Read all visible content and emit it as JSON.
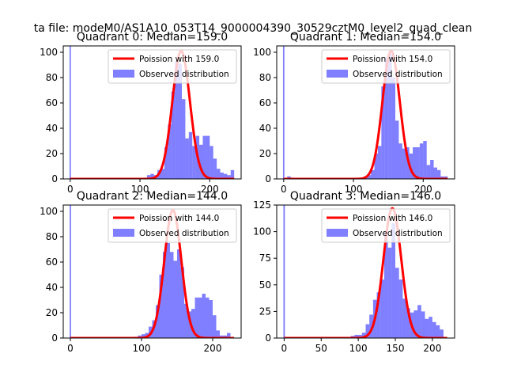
{
  "figure": {
    "suptitle": "ta file: modeM0/AS1A10_053T14_9000004390_30529cztM0_level2_quad_clean"
  },
  "colors": {
    "hist": "#0000ff",
    "poisson": "#ff0000",
    "axis": "#000000"
  },
  "chart_data": [
    {
      "type": "bar",
      "title": "Quadrant 0: Median=159.0",
      "xlim": [
        -10,
        245
      ],
      "ylim": [
        0,
        105
      ],
      "xticks": [
        0,
        100,
        200
      ],
      "yticks": [
        0,
        20,
        40,
        60,
        80,
        100
      ],
      "legend": [
        "Poission with 159.0",
        "Observed distribution"
      ],
      "legend_loc": "upper right",
      "poisson_mean": 159.0,
      "poisson_peak": 101,
      "bin_width": 5,
      "spike": {
        "x": 0,
        "value": 105
      },
      "hist_x": [
        100,
        105,
        110,
        115,
        120,
        125,
        130,
        135,
        140,
        145,
        150,
        155,
        160,
        165,
        170,
        175,
        180,
        185,
        190,
        195,
        200,
        205,
        210,
        215,
        220,
        225,
        230,
        235
      ],
      "hist_y": [
        0,
        1,
        3,
        4,
        3,
        7,
        8,
        25,
        43,
        69,
        93,
        91,
        63,
        32,
        37,
        26,
        34,
        27,
        34,
        34,
        26,
        16,
        8,
        5,
        4,
        3,
        7,
        0
      ]
    },
    {
      "type": "bar",
      "title": "Quadrant 1: Median=154.0",
      "xlim": [
        -10,
        245
      ],
      "ylim": [
        0,
        105
      ],
      "xticks": [
        0,
        100,
        200
      ],
      "yticks": [
        0,
        20,
        40,
        60,
        80,
        100
      ],
      "legend": [
        "Poission with 154.0",
        "Observed distribution"
      ],
      "legend_loc": "upper right",
      "poisson_mean": 154.0,
      "poisson_peak": 101,
      "bin_width": 5,
      "spike": {
        "x": 0,
        "value": 105
      },
      "hist_x": [
        5,
        10,
        110,
        115,
        120,
        125,
        130,
        135,
        140,
        145,
        150,
        155,
        160,
        165,
        170,
        175,
        180,
        185,
        190,
        195,
        200,
        205,
        210,
        215,
        220,
        225,
        230
      ],
      "hist_y": [
        2,
        1,
        0,
        2,
        3,
        7,
        20,
        26,
        73,
        96,
        99,
        80,
        46,
        28,
        24,
        25,
        20,
        25,
        25,
        28,
        30,
        11,
        15,
        9,
        7,
        2,
        2
      ]
    },
    {
      "type": "bar",
      "title": "Quadrant 2: Median=144.0",
      "xlim": [
        -10,
        240
      ],
      "ylim": [
        0,
        105
      ],
      "xticks": [
        0,
        100,
        200
      ],
      "yticks": [
        0,
        20,
        40,
        60,
        80,
        100
      ],
      "legend": [
        "Poission with 144.0",
        "Observed distribution"
      ],
      "legend_loc": "upper right",
      "poisson_mean": 144.0,
      "poisson_peak": 101,
      "bin_width": 5,
      "spike": {
        "x": 0,
        "value": 105
      },
      "hist_x": [
        90,
        95,
        100,
        105,
        110,
        115,
        120,
        125,
        130,
        135,
        140,
        145,
        150,
        155,
        160,
        165,
        170,
        175,
        180,
        185,
        190,
        195,
        200,
        205,
        210,
        215,
        220,
        225
      ],
      "hist_y": [
        1,
        2,
        3,
        4,
        9,
        14,
        26,
        50,
        68,
        75,
        68,
        61,
        70,
        56,
        27,
        21,
        23,
        32,
        32,
        35,
        32,
        30,
        18,
        6,
        2,
        2,
        4,
        0
      ]
    },
    {
      "type": "bar",
      "title": "Quadrant 3: Median=146.0",
      "xlim": [
        -10,
        230
      ],
      "ylim": [
        0,
        125
      ],
      "xticks": [
        0,
        50,
        100,
        150,
        200
      ],
      "yticks": [
        0,
        25,
        50,
        75,
        100,
        125
      ],
      "legend": [
        "Poission with 146.0",
        "Observed distribution"
      ],
      "legend_loc": "upper right",
      "poisson_mean": 146.0,
      "poisson_peak": 122,
      "bin_width": 5,
      "spike": {
        "x": 0,
        "value": 125
      },
      "hist_x": [
        85,
        90,
        95,
        100,
        105,
        110,
        115,
        120,
        125,
        130,
        135,
        140,
        145,
        150,
        155,
        160,
        165,
        170,
        175,
        180,
        185,
        190,
        195,
        200,
        205,
        210,
        215
      ],
      "hist_y": [
        1,
        2,
        3,
        3,
        5,
        13,
        22,
        36,
        43,
        55,
        100,
        85,
        108,
        66,
        55,
        37,
        28,
        24,
        26,
        31,
        25,
        18,
        20,
        15,
        12,
        8,
        0
      ]
    }
  ]
}
